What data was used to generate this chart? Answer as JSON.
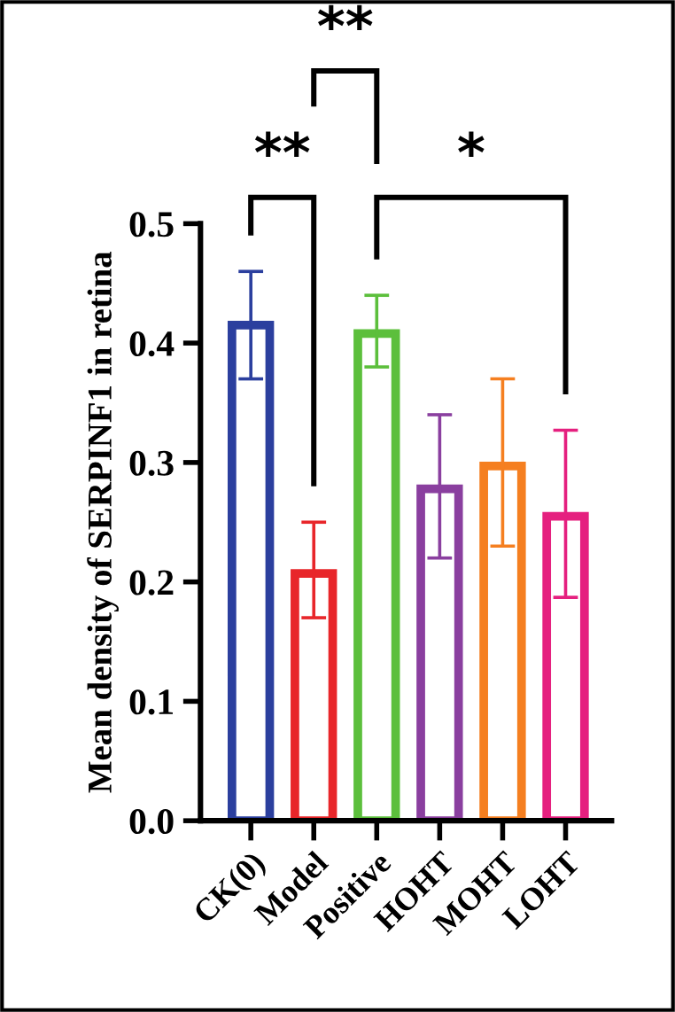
{
  "chart_data": {
    "type": "bar",
    "ylabel": "Mean density of SERPINF1 in retina",
    "categories": [
      "CK(0)",
      "Model",
      "Positive",
      "HOHT",
      "MOHT",
      "LOHT"
    ],
    "values": [
      0.415,
      0.207,
      0.408,
      0.278,
      0.297,
      0.255
    ],
    "errors": [
      [
        0.37,
        0.46
      ],
      [
        0.17,
        0.25
      ],
      [
        0.38,
        0.44
      ],
      [
        0.22,
        0.34
      ],
      [
        0.23,
        0.37
      ],
      [
        0.187,
        0.327
      ]
    ],
    "colors": [
      "#2b3f9e",
      "#e8262a",
      "#5cbf3c",
      "#8a3f9f",
      "#f57f20",
      "#e5207f"
    ],
    "ylim": [
      0,
      0.5
    ],
    "yticks": [
      {
        "value": 0,
        "label": "0.0"
      },
      0.1,
      0.2,
      0.3,
      0.4,
      0.5
    ],
    "grid": false,
    "legend": false,
    "annotations": [
      "**",
      "**",
      "*"
    ]
  }
}
